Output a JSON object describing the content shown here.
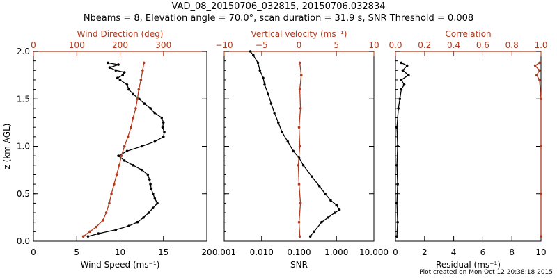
{
  "header": {
    "title_line1": "VAD_08_20150706_032815, 20150706.032834",
    "title_line2": "Nbeams = 8, Elevation angle = 70.0°, scan duration = 31.9 s, SNR Threshold = 0.008"
  },
  "footer": {
    "plot_created": "Plot created on Mon Oct 12 20:38:18 2015"
  },
  "colors": {
    "primary": "#000000",
    "secondary": "#b03a1e",
    "reference_line": "#d02020"
  },
  "chart_data": [
    {
      "type": "line",
      "ylabel": "z (km AGL)",
      "ylim": [
        0.0,
        2.0
      ],
      "yticks": [
        "0.0",
        "0.5",
        "1.0",
        "1.5",
        "2.0"
      ],
      "xlabel": "Wind Speed (ms⁻¹)",
      "xlim": [
        0,
        20
      ],
      "xticks": [
        "0",
        "5",
        "10",
        "15",
        "20"
      ],
      "x2label": "Wind Direction (deg)",
      "x2lim": [
        0,
        400
      ],
      "x2ticks": [
        "0",
        "100",
        "200",
        "300"
      ],
      "series": [
        {
          "axis": "bottom",
          "color": "#000000",
          "points": [
            [
              6.3,
              0.05
            ],
            [
              7.5,
              0.08
            ],
            [
              9.5,
              0.12
            ],
            [
              11,
              0.16
            ],
            [
              12,
              0.2
            ],
            [
              12.7,
              0.25
            ],
            [
              13.3,
              0.3
            ],
            [
              13.8,
              0.35
            ],
            [
              14.3,
              0.4
            ],
            [
              14,
              0.45
            ],
            [
              13.8,
              0.5
            ],
            [
              13.6,
              0.55
            ],
            [
              13.5,
              0.6
            ],
            [
              13.4,
              0.65
            ],
            [
              13.2,
              0.7
            ],
            [
              12.5,
              0.75
            ],
            [
              11.5,
              0.8
            ],
            [
              10.5,
              0.85
            ],
            [
              9.8,
              0.9
            ],
            [
              10.8,
              0.95
            ],
            [
              12.5,
              1.0
            ],
            [
              14,
              1.05
            ],
            [
              15,
              1.1
            ],
            [
              15.1,
              1.15
            ],
            [
              14.9,
              1.2
            ],
            [
              15,
              1.25
            ],
            [
              14.8,
              1.3
            ],
            [
              14,
              1.35
            ],
            [
              13.5,
              1.4
            ],
            [
              12.8,
              1.45
            ],
            [
              12.2,
              1.5
            ],
            [
              11.5,
              1.55
            ],
            [
              11,
              1.6
            ],
            [
              10.8,
              1.65
            ],
            [
              10,
              1.7
            ],
            [
              9.7,
              1.72
            ],
            [
              10.3,
              1.75
            ],
            [
              10.5,
              1.78
            ],
            [
              9.5,
              1.8
            ],
            [
              8.8,
              1.83
            ],
            [
              9.8,
              1.86
            ],
            [
              8.6,
              1.88
            ]
          ]
        },
        {
          "axis": "top",
          "color": "#b03a1e",
          "points": [
            [
              115,
              0.05
            ],
            [
              130,
              0.1
            ],
            [
              145,
              0.15
            ],
            [
              160,
              0.22
            ],
            [
              168,
              0.3
            ],
            [
              175,
              0.4
            ],
            [
              180,
              0.5
            ],
            [
              186,
              0.6
            ],
            [
              192,
              0.7
            ],
            [
              198,
              0.8
            ],
            [
              203,
              0.9
            ],
            [
              210,
              1.0
            ],
            [
              218,
              1.1
            ],
            [
              225,
              1.2
            ],
            [
              230,
              1.3
            ],
            [
              236,
              1.4
            ],
            [
              240,
              1.5
            ],
            [
              243,
              1.6
            ],
            [
              248,
              1.7
            ],
            [
              252,
              1.8
            ],
            [
              255,
              1.88
            ]
          ]
        }
      ]
    },
    {
      "type": "line",
      "ylim": [
        0.0,
        2.0
      ],
      "xlabel": "SNR",
      "xscale": "log",
      "xlim": [
        0.001,
        10
      ],
      "xticks": [
        "0.001",
        "0.010",
        "0.100",
        "1.000",
        "10.000"
      ],
      "x2label": "Vertical velocity (ms⁻¹)",
      "x2lim": [
        -10,
        10
      ],
      "x2ticks": [
        "−10",
        "−5",
        "0",
        "5",
        "10"
      ],
      "series": [
        {
          "axis": "bottom",
          "color": "#000000",
          "points": [
            [
              0.2,
              0.05
            ],
            [
              0.25,
              0.1
            ],
            [
              0.4,
              0.2
            ],
            [
              0.6,
              0.25
            ],
            [
              0.9,
              0.3
            ],
            [
              1.2,
              0.33
            ],
            [
              1.0,
              0.38
            ],
            [
              0.7,
              0.43
            ],
            [
              0.5,
              0.5
            ],
            [
              0.35,
              0.58
            ],
            [
              0.22,
              0.68
            ],
            [
              0.13,
              0.8
            ],
            [
              0.1,
              0.88
            ],
            [
              0.07,
              0.95
            ],
            [
              0.05,
              1.05
            ],
            [
              0.035,
              1.15
            ],
            [
              0.028,
              1.25
            ],
            [
              0.022,
              1.35
            ],
            [
              0.018,
              1.45
            ],
            [
              0.015,
              1.55
            ],
            [
              0.012,
              1.65
            ],
            [
              0.011,
              1.72
            ],
            [
              0.009,
              1.8
            ],
            [
              0.008,
              1.88
            ],
            [
              0.006,
              1.96
            ],
            [
              0.005,
              2.0
            ]
          ]
        },
        {
          "axis": "top",
          "color": "#b03a1e",
          "points": [
            [
              0.1,
              0.05
            ],
            [
              0.0,
              0.2
            ],
            [
              0.2,
              0.4
            ],
            [
              0.0,
              0.6
            ],
            [
              -0.1,
              0.8
            ],
            [
              0.1,
              1.0
            ],
            [
              0.0,
              1.2
            ],
            [
              0.2,
              1.4
            ],
            [
              0.1,
              1.6
            ],
            [
              0.3,
              1.75
            ],
            [
              0.1,
              1.88
            ]
          ]
        }
      ],
      "reference_lines": [
        {
          "axis": "top",
          "value": 0
        }
      ]
    },
    {
      "type": "line",
      "ylim": [
        0.0,
        2.0
      ],
      "xlabel": "Residual (ms⁻¹)",
      "xlim": [
        0,
        10
      ],
      "xticks": [
        "0",
        "2",
        "4",
        "6",
        "8",
        "10"
      ],
      "x2label": "Correlation",
      "x2lim": [
        0.0,
        1.0
      ],
      "x2ticks": [
        "0.0",
        "0.2",
        "0.4",
        "0.6",
        "0.8",
        "1.0"
      ],
      "series": [
        {
          "axis": "bottom",
          "color": "#000000",
          "points": [
            [
              0.1,
              0.05
            ],
            [
              0.15,
              0.2
            ],
            [
              0.1,
              0.4
            ],
            [
              0.15,
              0.6
            ],
            [
              0.1,
              0.8
            ],
            [
              0.15,
              1.0
            ],
            [
              0.1,
              1.2
            ],
            [
              0.2,
              1.4
            ],
            [
              0.3,
              1.5
            ],
            [
              0.4,
              1.6
            ],
            [
              0.6,
              1.65
            ],
            [
              0.4,
              1.7
            ],
            [
              0.9,
              1.75
            ],
            [
              0.5,
              1.8
            ],
            [
              0.8,
              1.85
            ],
            [
              0.4,
              1.88
            ]
          ]
        },
        {
          "axis": "top",
          "color": "#b03a1e",
          "points": [
            [
              1.0,
              0.05
            ],
            [
              1.0,
              0.5
            ],
            [
              1.0,
              1.0
            ],
            [
              1.0,
              1.5
            ],
            [
              0.99,
              1.7
            ],
            [
              0.97,
              1.75
            ],
            [
              0.99,
              1.8
            ],
            [
              0.96,
              1.85
            ],
            [
              0.99,
              1.88
            ]
          ]
        }
      ]
    }
  ]
}
